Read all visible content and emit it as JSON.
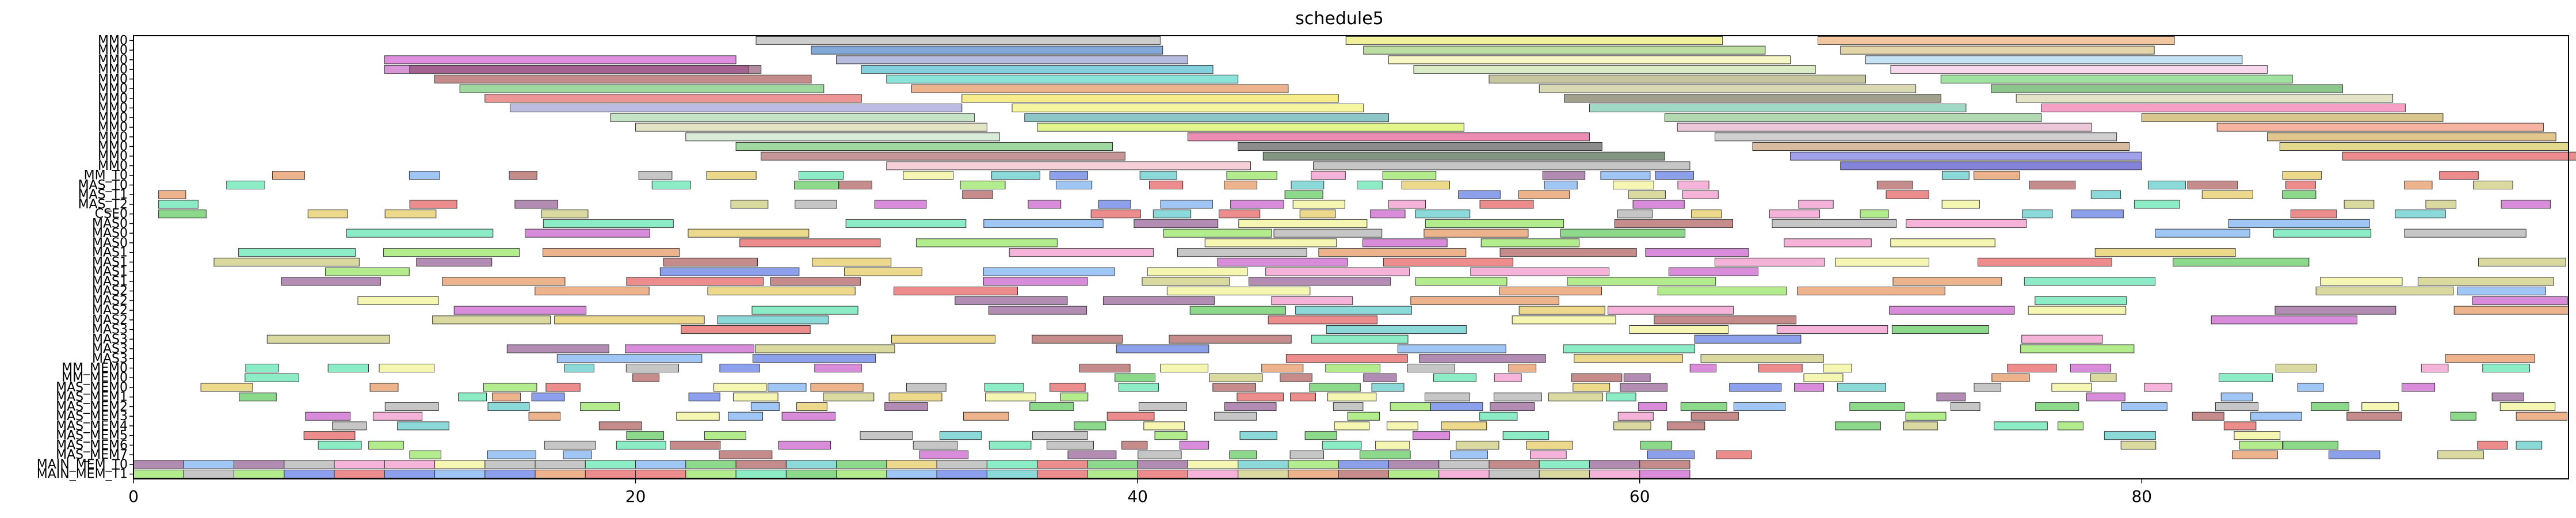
{
  "chart_data": {
    "type": "gantt",
    "title": "schedule5",
    "xlabel": "",
    "ylabel": "",
    "xlim": [
      0,
      97
    ],
    "x_ticks": [
      0,
      20,
      40,
      60,
      80
    ],
    "grid": false,
    "legend": "none",
    "rows": [
      "MM0",
      "MM0",
      "MM0",
      "MM0",
      "MM0",
      "MM0",
      "MM0",
      "MM0",
      "MM0",
      "MM0",
      "MM0",
      "MM0",
      "MM0",
      "MM0",
      "MM_T0",
      "MAS_T0",
      "MAS_T1",
      "MAS_T2",
      "CSE0",
      "MAS0",
      "MAS0",
      "MAS0",
      "MAS1",
      "MAS1",
      "MAS1",
      "MAS1",
      "MAS2",
      "MAS2",
      "MAS2",
      "MAS2",
      "MAS3",
      "MAS3",
      "MAS3",
      "MAS3",
      "MM_MEM0",
      "MM_MEM0",
      "MAS_MEM0",
      "MAS_MEM1",
      "MAS_MEM2",
      "MAS_MEM3",
      "MAS_MEM4",
      "MAS_MEM5",
      "MAS_MEM6",
      "MAS_MEM7",
      "MAIN_MEM_T0",
      "MAIN_MEM_T1"
    ],
    "row_labels_visible": [
      "MM0",
      "MM0",
      "MM0",
      "MM0",
      "MM0",
      "MM0",
      "MM0",
      "MM0",
      "MM0",
      "MM0",
      "MM0",
      "MM0",
      "MM0",
      "MM0",
      "MM_T0",
      "MAS_T0",
      "MAS_T1",
      "MAS_T2",
      "CSE0",
      "MAS0",
      "MAS0",
      "MAS0",
      "MAS1",
      "MAS1",
      "MAS1",
      "MAS1",
      "MAS2",
      "MAS2",
      "MAS2",
      "MAS2",
      "MAS3",
      "MAS3",
      "MAS3",
      "MAS3",
      "MM_MEM0",
      "MM_MEM0",
      "MAS_MEM0",
      "MAS_MEM1",
      "MAS_MEM2",
      "MAS_MEM3",
      "MAS_MEM4",
      "MAS_MEM5",
      "MAS_MEM6",
      "MAS_MEM7",
      "MAIN_MEM_T0",
      "MAIN_MEM_T1"
    ],
    "tasks": [
      {
        "row": 0,
        "start": 24.8,
        "end": 40.9,
        "color": "#aaaaaa"
      },
      {
        "row": 0,
        "start": 48.3,
        "end": 63.3,
        "color": "#e8e858"
      },
      {
        "row": 0,
        "start": 67.1,
        "end": 81.3,
        "color": "#e8a060"
      },
      {
        "row": 1,
        "start": 27.0,
        "end": 41.0,
        "color": "#3070c0"
      },
      {
        "row": 1,
        "start": 49.0,
        "end": 65.0,
        "color": "#90c860"
      },
      {
        "row": 1,
        "start": 68.0,
        "end": 80.5,
        "color": "#d0b870"
      },
      {
        "row": 2,
        "start": 10.0,
        "end": 24.0,
        "color": "#cc44cc"
      },
      {
        "row": 2,
        "start": 28.0,
        "end": 42.0,
        "color": "#8890c8"
      },
      {
        "row": 2,
        "start": 50.0,
        "end": 66.0,
        "color": "#f0f0a0"
      },
      {
        "row": 2,
        "start": 69.0,
        "end": 84.0,
        "color": "#a0d0f0"
      },
      {
        "row": 3,
        "start": 10.0,
        "end": 24.5,
        "color": "#c050c0"
      },
      {
        "row": 3,
        "start": 11.0,
        "end": 25.0,
        "color": "#804060"
      },
      {
        "row": 3,
        "start": 29.0,
        "end": 43.0,
        "color": "#30b0c8"
      },
      {
        "row": 3,
        "start": 51.0,
        "end": 67.0,
        "color": "#c0e0a0"
      },
      {
        "row": 3,
        "start": 70.0,
        "end": 85.0,
        "color": "#f0c0e0"
      },
      {
        "row": 4,
        "start": 12.0,
        "end": 27.0,
        "color": "#a04040"
      },
      {
        "row": 4,
        "start": 30.0,
        "end": 44.0,
        "color": "#40d0c0"
      },
      {
        "row": 4,
        "start": 54.0,
        "end": 69.0,
        "color": "#a0a060"
      },
      {
        "row": 4,
        "start": 72.0,
        "end": 86.0,
        "color": "#60d060"
      },
      {
        "row": 5,
        "start": 13.0,
        "end": 27.5,
        "color": "#60c060"
      },
      {
        "row": 5,
        "start": 31.0,
        "end": 46.0,
        "color": "#e08040"
      },
      {
        "row": 5,
        "start": 56.0,
        "end": 71.0,
        "color": "#c0c080"
      },
      {
        "row": 5,
        "start": 74.0,
        "end": 88.0,
        "color": "#40a040"
      },
      {
        "row": 6,
        "start": 14.0,
        "end": 29.0,
        "color": "#e05050"
      },
      {
        "row": 6,
        "start": 33.0,
        "end": 48.0,
        "color": "#f0e040"
      },
      {
        "row": 6,
        "start": 57.0,
        "end": 72.0,
        "color": "#606040"
      },
      {
        "row": 6,
        "start": 75.0,
        "end": 90.0,
        "color": "#d0d0a0"
      },
      {
        "row": 7,
        "start": 15.0,
        "end": 33.0,
        "color": "#9090d0"
      },
      {
        "row": 7,
        "start": 35.0,
        "end": 49.0,
        "color": "#f0f060"
      },
      {
        "row": 7,
        "start": 58.0,
        "end": 73.0,
        "color": "#60c0a0"
      },
      {
        "row": 7,
        "start": 76.0,
        "end": 90.5,
        "color": "#f060a0"
      },
      {
        "row": 8,
        "start": 19.0,
        "end": 33.5,
        "color": "#a0d0a0"
      },
      {
        "row": 8,
        "start": 35.5,
        "end": 50.0,
        "color": "#40a0a0"
      },
      {
        "row": 8,
        "start": 61.0,
        "end": 76.0,
        "color": "#80c080"
      },
      {
        "row": 8,
        "start": 80.0,
        "end": 92.0,
        "color": "#c0a040"
      },
      {
        "row": 9,
        "start": 20.0,
        "end": 34.0,
        "color": "#d0d0a0"
      },
      {
        "row": 9,
        "start": 36.0,
        "end": 53.0,
        "color": "#d0f040"
      },
      {
        "row": 9,
        "start": 61.5,
        "end": 78.0,
        "color": "#e0a0c0"
      },
      {
        "row": 9,
        "start": 83.0,
        "end": 96.0,
        "color": "#f08060"
      },
      {
        "row": 10,
        "start": 22.0,
        "end": 34.5,
        "color": "#c0e0c0"
      },
      {
        "row": 10,
        "start": 42.0,
        "end": 58.0,
        "color": "#e04080"
      },
      {
        "row": 10,
        "start": 63.0,
        "end": 79.0,
        "color": "#b0b0b0"
      },
      {
        "row": 10,
        "start": 85.0,
        "end": 96.5,
        "color": "#d0a040"
      },
      {
        "row": 11,
        "start": 24.0,
        "end": 39.0,
        "color": "#60c060"
      },
      {
        "row": 11,
        "start": 44.0,
        "end": 58.5,
        "color": "#404040"
      },
      {
        "row": 11,
        "start": 64.5,
        "end": 79.5,
        "color": "#c09060"
      },
      {
        "row": 11,
        "start": 85.5,
        "end": 97.0,
        "color": "#d0c040"
      },
      {
        "row": 12,
        "start": 25.0,
        "end": 39.5,
        "color": "#a05050"
      },
      {
        "row": 12,
        "start": 45.0,
        "end": 61.0,
        "color": "#305030"
      },
      {
        "row": 12,
        "start": 66.0,
        "end": 80.0,
        "color": "#6060e0"
      },
      {
        "row": 12,
        "start": 88.0,
        "end": 99.0,
        "color": "#e04040"
      },
      {
        "row": 13,
        "start": 30.0,
        "end": 44.5,
        "color": "#f0b0c0"
      },
      {
        "row": 13,
        "start": 47.0,
        "end": 62.0,
        "color": "#a0a0a0"
      },
      {
        "row": 13,
        "start": 68.0,
        "end": 80.0,
        "color": "#3030c0"
      }
    ],
    "random_rows_seed": 5
  }
}
